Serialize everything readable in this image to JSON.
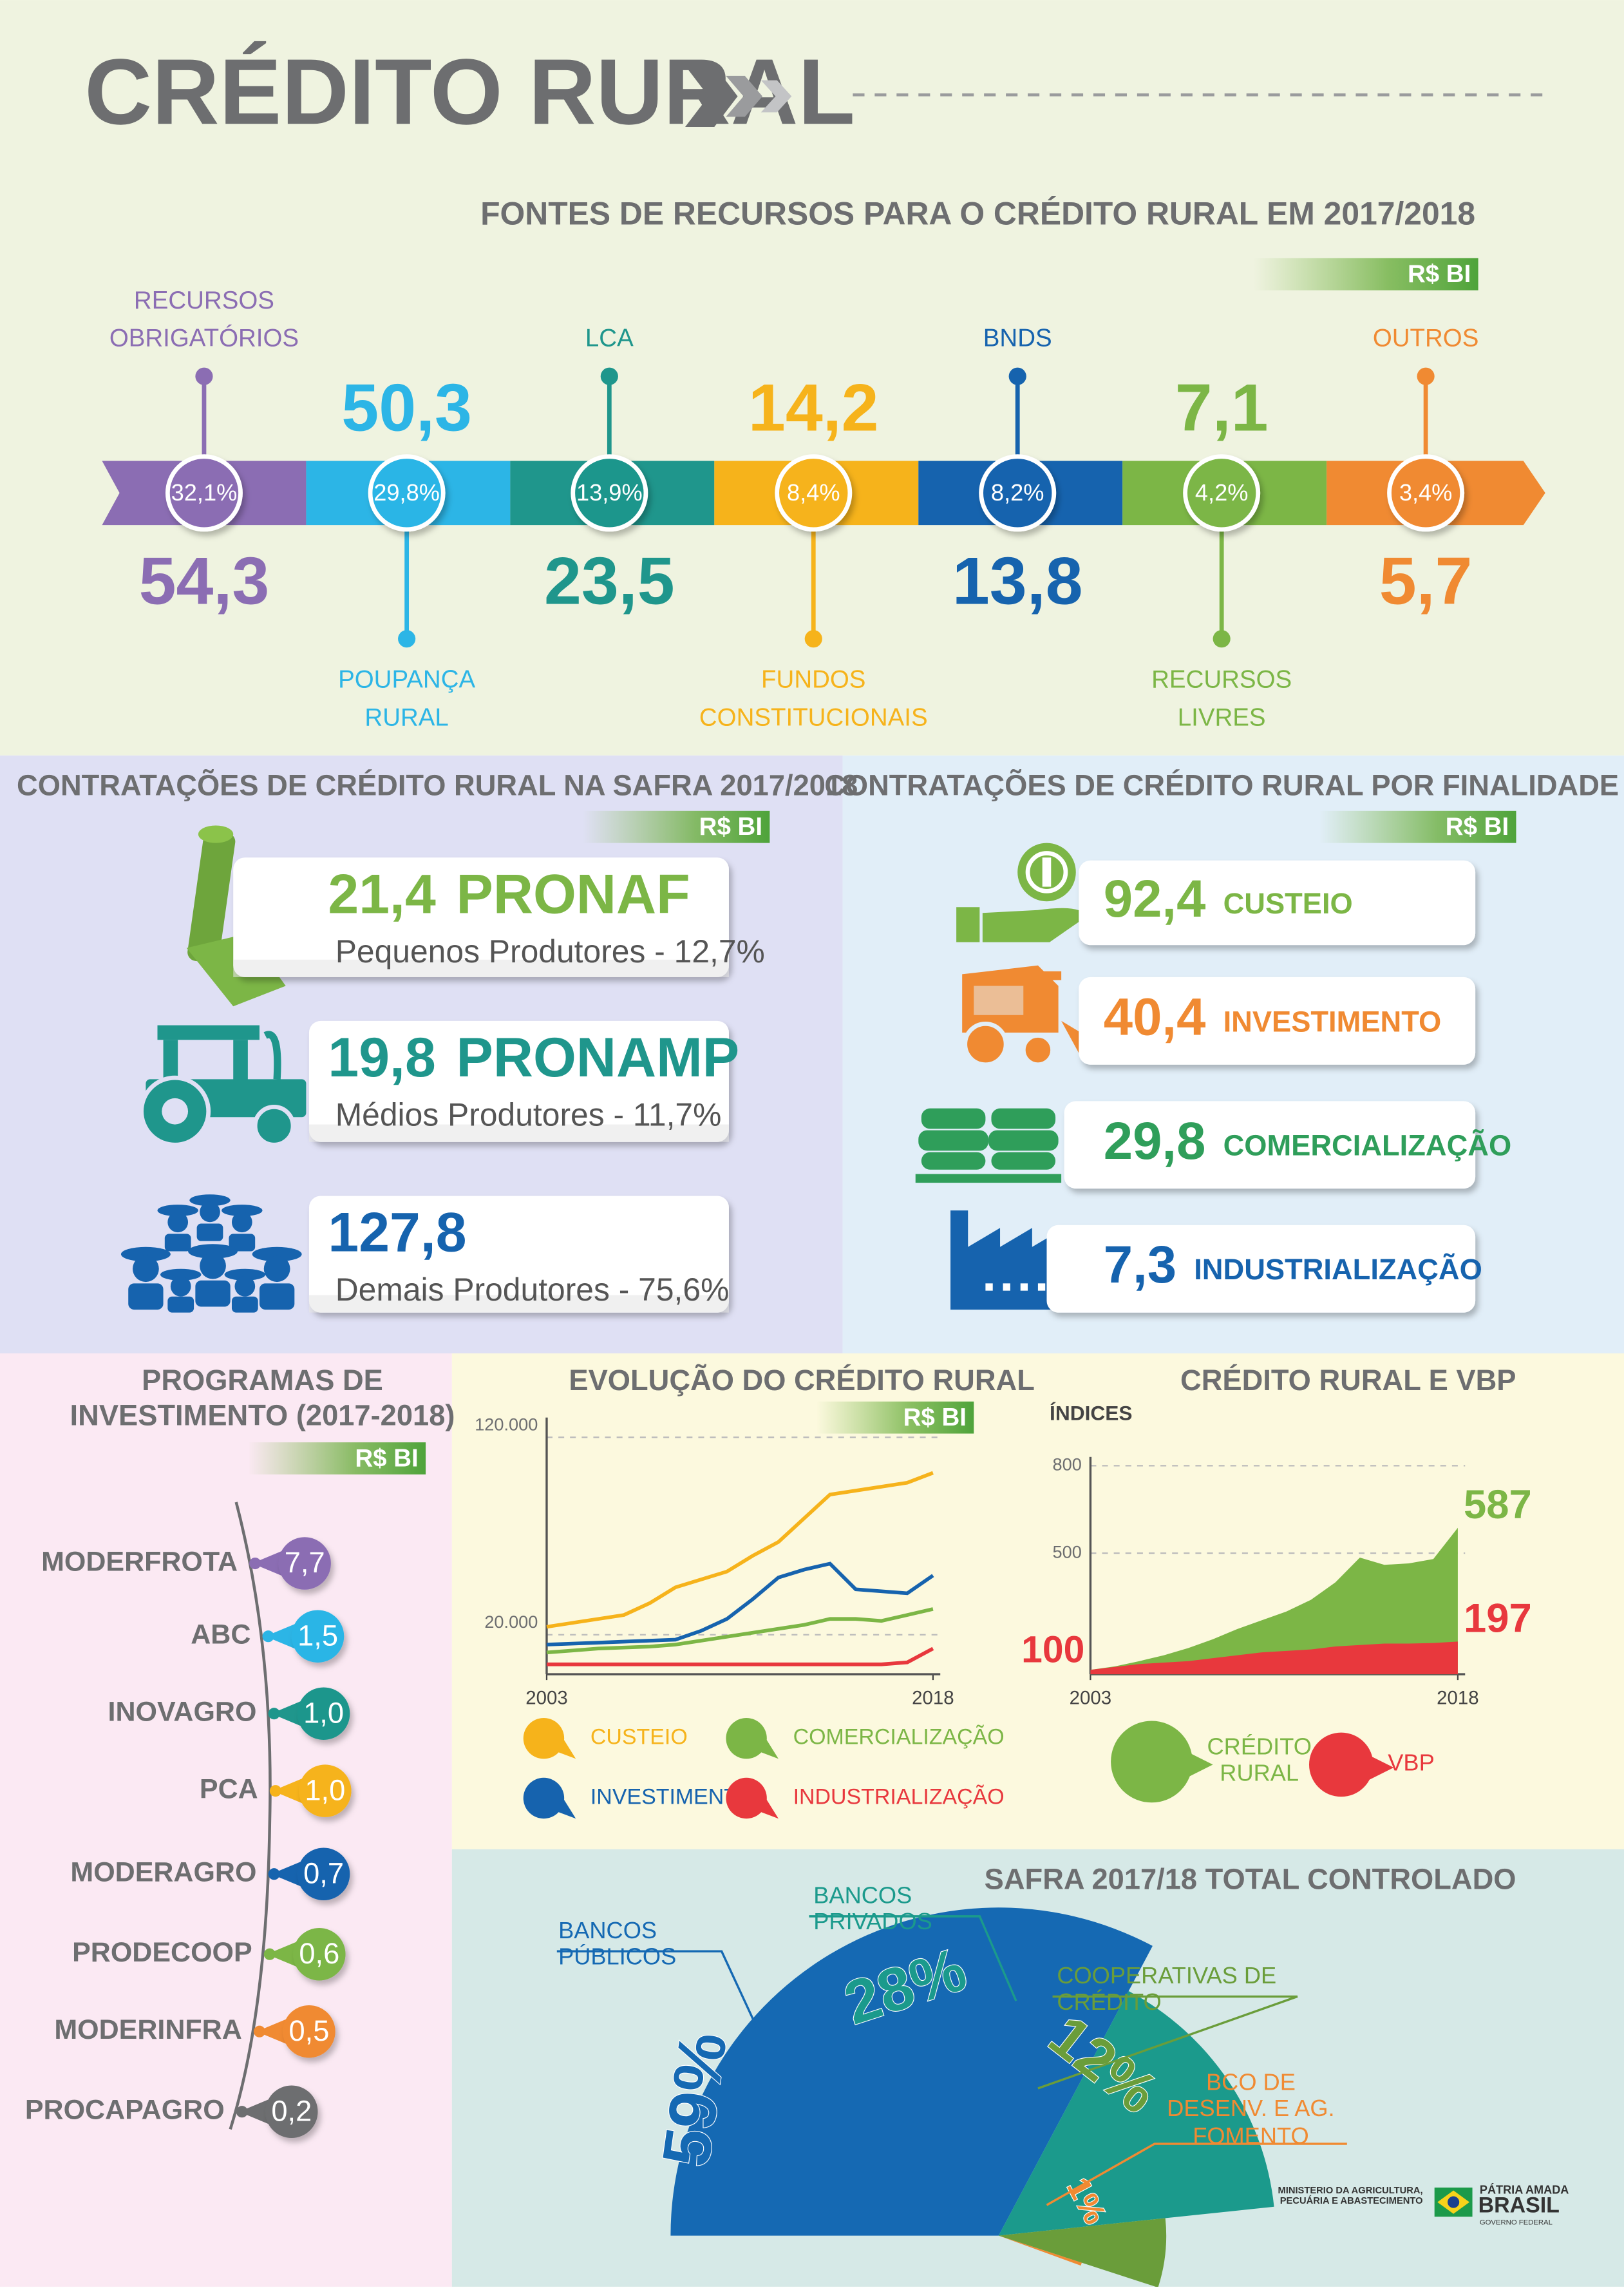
{
  "header": {
    "title": "CRÉDITO RURAL"
  },
  "fontes": {
    "title": "FONTES DE RECURSOS PARA O CRÉDITO RURAL EM 2017/2018",
    "unit": "R$ BI",
    "items": [
      {
        "name": [
          "RECURSOS",
          "OBRIGATÓRIOS"
        ],
        "share": "32,1%",
        "value": "54,3",
        "color": "#8b6db3"
      },
      {
        "name": [
          "POUPANÇA",
          "RURAL"
        ],
        "share": "29,8%",
        "value": "50,3",
        "color": "#2cb5e6"
      },
      {
        "name": [
          "LCA"
        ],
        "share": "13,9%",
        "value": "23,5",
        "color": "#1f968c"
      },
      {
        "name": [
          "FUNDOS",
          "CONSTITUCIONAIS"
        ],
        "share": "8,4%",
        "value": "14,2",
        "color": "#f6b31b"
      },
      {
        "name": [
          "BNDS"
        ],
        "share": "8,2%",
        "value": "13,8",
        "color": "#1663ae"
      },
      {
        "name": [
          "RECURSOS",
          "LIVRES"
        ],
        "share": "4,2%",
        "value": "7,1",
        "color": "#7cb646"
      },
      {
        "name": [
          "OUTROS"
        ],
        "share": "3,4%",
        "value": "5,7",
        "color": "#f08a32"
      }
    ]
  },
  "safra": {
    "title": "CONTRATAÇÕES DE CRÉDITO RURAL NA SAFRA 2017/2018",
    "unit": "R$ BI",
    "items": [
      {
        "value": "21,4",
        "program": "PRONAF",
        "description": "Pequenos Produtores - 12,7%",
        "color": "#7cb646"
      },
      {
        "value": "19,8",
        "program": "PRONAMP",
        "description": "Médios Produtores - 11,7%",
        "color": "#1f968c"
      },
      {
        "value": "127,8",
        "description": "Demais Produtores - 75,6%",
        "color": "#1663ae"
      }
    ]
  },
  "finalidade": {
    "title": "CONTRATAÇÕES DE CRÉDITO RURAL POR FINALIDADE",
    "unit": "R$ BI",
    "items": [
      {
        "value": "92,4",
        "name": "CUSTEIO",
        "color": "#7cb646"
      },
      {
        "value": "40,4",
        "name": "INVESTIMENTO",
        "color": "#f08a32"
      },
      {
        "value": "29,8",
        "name": "COMERCIALIZAÇÃO",
        "color": "#2f9e5a"
      },
      {
        "value": "7,3",
        "name": "INDUSTRIALIZAÇÃO",
        "color": "#1663ae"
      }
    ]
  },
  "programas": {
    "title": [
      "PROGRAMAS DE",
      "INVESTIMENTO (2017-2018)"
    ],
    "unit": "R$ BI",
    "items": [
      {
        "name": "MODERFROTA",
        "value": "7,7",
        "color": "#8b6db3"
      },
      {
        "name": "ABC",
        "value": "1,5",
        "color": "#2cb5e6"
      },
      {
        "name": "INOVAGRO",
        "value": "1,0",
        "color": "#1f968c"
      },
      {
        "name": "PCA",
        "value": "1,0",
        "color": "#f6b31b"
      },
      {
        "name": "MODERAGRO",
        "value": "0,7",
        "color": "#1663ae"
      },
      {
        "name": "PRODECOOP",
        "value": "0,6",
        "color": "#7cb646"
      },
      {
        "name": "MODERINFRA",
        "value": "0,5",
        "color": "#f08a32"
      },
      {
        "name": "PROCAPAGRO",
        "value": "0,2",
        "color": "#6d6e70"
      }
    ]
  },
  "chart_data": [
    {
      "type": "line",
      "title": "EVOLUÇÃO DO CRÉDITO RURAL",
      "subtitle": "R$ BI",
      "x": [
        2003,
        2004,
        2005,
        2006,
        2007,
        2008,
        2009,
        2010,
        2011,
        2012,
        2013,
        2014,
        2015,
        2016,
        2017,
        2018
      ],
      "xlim": [
        2003,
        2018
      ],
      "xticks": [
        2003,
        2018
      ],
      "ylim": [
        0,
        130000
      ],
      "yticks": [
        {
          "value": 20000,
          "label": "20.000"
        },
        {
          "value": 120000,
          "label": "120.000"
        }
      ],
      "grid": true,
      "series": [
        {
          "name": "CUSTEIO",
          "color": "#f6b31b",
          "values": [
            24000,
            26000,
            28000,
            30000,
            36000,
            44000,
            48000,
            52000,
            60000,
            67000,
            79000,
            91000,
            93000,
            95000,
            97000,
            102000
          ]
        },
        {
          "name": "COMERCIALIZAÇÃO",
          "color": "#7cb646",
          "values": [
            11000,
            12000,
            13000,
            13500,
            14000,
            15000,
            17000,
            19000,
            21000,
            23000,
            25000,
            28000,
            28000,
            27000,
            30000,
            33000
          ]
        },
        {
          "name": "INVESTIMENTO",
          "color": "#1663ae",
          "values": [
            15000,
            15500,
            16000,
            16500,
            17000,
            17500,
            22000,
            28000,
            38000,
            49000,
            53000,
            56000,
            43000,
            42000,
            41000,
            50000
          ]
        },
        {
          "name": "INDUSTRIALIZAÇÃO",
          "color": "#e8383d",
          "values": [
            5000,
            5000,
            5000,
            5000,
            5000,
            5000,
            5000,
            5000,
            5000,
            5000,
            5000,
            5000,
            5000,
            5000,
            6000,
            13000
          ]
        }
      ]
    },
    {
      "type": "area",
      "title": "CRÉDITO RURAL E VBP",
      "ylabel": "ÍNDICES",
      "x": [
        2003,
        2004,
        2005,
        2006,
        2007,
        2008,
        2009,
        2010,
        2011,
        2012,
        2013,
        2014,
        2015,
        2016,
        2017,
        2018
      ],
      "xlim": [
        2003,
        2018
      ],
      "xticks": [
        2003,
        2018
      ],
      "ylim": [
        85,
        830
      ],
      "yticks": [
        500,
        800
      ],
      "grid": true,
      "series": [
        {
          "name": "CRÉDITO RURAL",
          "color": "#7cb646",
          "values": [
            100,
            112,
            130,
            150,
            175,
            205,
            240,
            270,
            300,
            340,
            400,
            485,
            460,
            465,
            480,
            587
          ]
        },
        {
          "name": "VBP",
          "color": "#e8383d",
          "values": [
            100,
            110,
            120,
            125,
            130,
            140,
            150,
            160,
            165,
            170,
            180,
            185,
            190,
            190,
            192,
            197
          ]
        }
      ]
    },
    {
      "type": "pie",
      "title": "SAFRA 2017/18 TOTAL CONTROLADO",
      "categories": [
        "BANCOS PÚBLICOS",
        "BANCOS PRIVADOS",
        "COOPERATIVAS DE CRÉDITO",
        "BCO DE DESENV. E AG. FOMENTO"
      ],
      "values": [
        59,
        28,
        12,
        1
      ],
      "value_labels": [
        "59%",
        "28%",
        "12%",
        "1%"
      ],
      "colors": [
        "#1569b3",
        "#1b9a8c",
        "#6a9d3a",
        "#f08a32"
      ]
    }
  ],
  "footer": {
    "ministry": "MINISTÉRIO DA AGRICULTURA, PECUÁRIA E ABASTECIMENTO",
    "slogan": "PÁTRIA AMADA",
    "country": "BRASIL",
    "government": "GOVERNO FEDERAL"
  }
}
